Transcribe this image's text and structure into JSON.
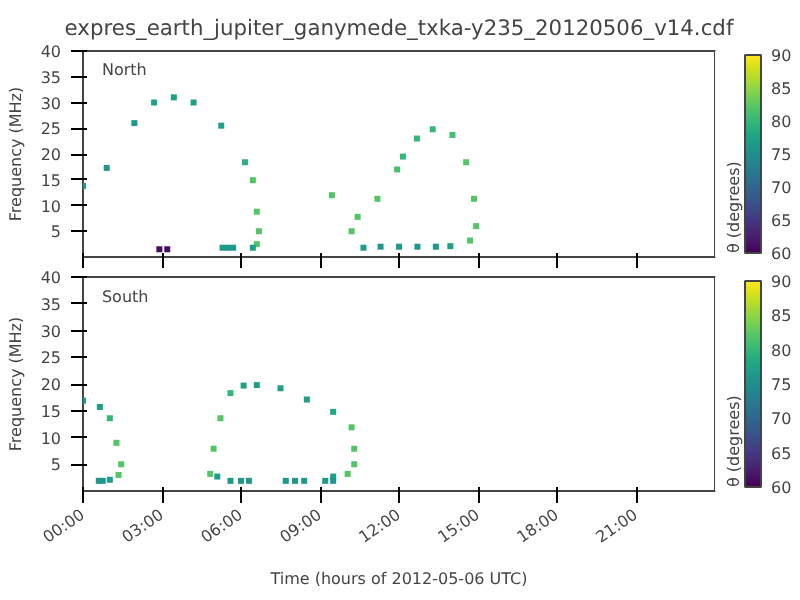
{
  "chart_data": [
    {
      "type": "scatter",
      "title": "expres_earth_jupiter_ganymede_txka-y235_20120506_v14.cdf",
      "ylabel": "Frequency (MHz)",
      "clabel": "θ (degrees)",
      "annotations": [
        "North"
      ],
      "marker": "square",
      "grid": false,
      "tick_labels": "y",
      "xlim": [
        0,
        24
      ],
      "xticks": [
        {
          "value": 0,
          "label": null
        },
        {
          "value": 3,
          "label": null
        },
        {
          "value": 6,
          "label": null
        },
        {
          "value": 9,
          "label": null
        },
        {
          "value": 12,
          "label": null
        },
        {
          "value": 15,
          "label": null
        },
        {
          "value": 18,
          "label": null
        },
        {
          "value": 21,
          "label": null
        }
      ],
      "ylim": [
        0,
        40
      ],
      "yticks": [
        5,
        10,
        15,
        20,
        25,
        30,
        35,
        40
      ],
      "clim": [
        60,
        90
      ],
      "cticks": [
        60,
        65,
        70,
        75,
        80,
        85,
        90
      ],
      "series": [
        {
          "x": [
            0,
            0.9,
            1.95,
            2.7,
            3.45,
            4.2,
            5.25,
            6.15,
            6.45,
            6.6,
            6.68,
            6.6,
            6.45,
            5.3,
            5.5,
            5.7,
            2.9,
            3.2,
            9.45,
            10.2,
            10.43,
            11.18,
            11.93,
            12.15,
            12.68,
            13.28,
            14.03,
            14.55,
            14.85,
            14.93,
            14.7,
            13.95,
            10.65,
            11.3,
            12.0,
            12.7,
            13.4
          ],
          "values": [
            13.8,
            17.3,
            26,
            30,
            31,
            30,
            25.5,
            18.4,
            14.9,
            8.8,
            5,
            2.5,
            1.8,
            1.8,
            1.8,
            1.8,
            1.5,
            1.5,
            12,
            5,
            7.8,
            11.3,
            17,
            19.5,
            23,
            24.8,
            23.7,
            18.4,
            11.3,
            6,
            3.2,
            2.1,
            1.8,
            2,
            2,
            2,
            2
          ],
          "cvalues": [
            76,
            76,
            76,
            77,
            77,
            77,
            77,
            79,
            82,
            82,
            82,
            82,
            77,
            76,
            76,
            76,
            61,
            61,
            82,
            82,
            82,
            82,
            81,
            80,
            80,
            80,
            81,
            82,
            82,
            82,
            82,
            77,
            77,
            76,
            76,
            76,
            76
          ]
        }
      ]
    },
    {
      "type": "scatter",
      "xlabel": "Time (hours of 2012-05-06 UTC)",
      "ylabel": "Frequency (MHz)",
      "clabel": "θ (degrees)",
      "annotations": [
        "South"
      ],
      "marker": "square",
      "grid": false,
      "xlim": [
        0,
        24
      ],
      "xticks": [
        {
          "value": 0,
          "label": "00:00"
        },
        {
          "value": 3,
          "label": "03:00"
        },
        {
          "value": 6,
          "label": "06:00"
        },
        {
          "value": 9,
          "label": "09:00"
        },
        {
          "value": 12,
          "label": "12:00"
        },
        {
          "value": 15,
          "label": "15:00"
        },
        {
          "value": 18,
          "label": "18:00"
        },
        {
          "value": 21,
          "label": "21:00"
        }
      ],
      "ylim": [
        0,
        40
      ],
      "yticks": [
        5,
        10,
        15,
        20,
        25,
        30,
        35,
        40
      ],
      "clim": [
        60,
        90
      ],
      "cticks": [
        60,
        65,
        70,
        75,
        80,
        85,
        90
      ],
      "series": [
        {
          "x": [
            0,
            0.64,
            1.02,
            1.27,
            1.45,
            1.35,
            1.02,
            0.6,
            0.75,
            4.83,
            4.96,
            5.22,
            5.6,
            6.1,
            6.6,
            7.5,
            8.5,
            9.5,
            10.2,
            10.3,
            10.3,
            10.05,
            9.5,
            5.1,
            5.6,
            6.0,
            6.3,
            7.7,
            8.05,
            8.4,
            9.2,
            9.5
          ],
          "values": [
            16.9,
            15.7,
            13.6,
            9,
            5,
            3,
            2.1,
            1.9,
            1.9,
            3.2,
            7.9,
            13.6,
            18.3,
            19.7,
            19.8,
            19.2,
            17.1,
            14.8,
            11.9,
            7.9,
            5,
            3.2,
            2.7,
            2.7,
            1.9,
            1.9,
            1.9,
            1.9,
            1.9,
            1.9,
            1.9,
            1.9
          ],
          "cvalues": [
            76,
            77,
            80,
            82,
            82,
            82,
            77,
            76,
            76,
            82,
            82,
            82,
            80,
            77,
            77,
            77,
            77,
            78,
            82,
            82,
            82,
            82,
            77,
            77,
            76,
            76,
            76,
            76,
            76,
            76,
            76,
            76
          ]
        }
      ]
    }
  ]
}
